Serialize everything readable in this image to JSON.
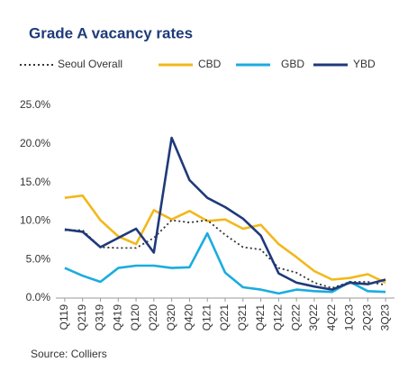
{
  "chart_data": {
    "type": "line",
    "title": "Grade A vacancy rates",
    "source": "Source: Colliers",
    "categories": [
      "Q119",
      "Q219",
      "Q319",
      "Q419",
      "Q120",
      "Q220",
      "Q320",
      "Q420",
      "Q121",
      "Q221",
      "Q321",
      "Q421",
      "Q122",
      "Q222",
      "3Q22",
      "4Q22",
      "1Q23",
      "2Q23",
      "3Q23"
    ],
    "series": [
      {
        "name": "Seoul Overall",
        "color": "#333333",
        "dash": "dotted",
        "values": [
          8.8,
          8.8,
          6.6,
          6.5,
          6.5,
          7.8,
          10.1,
          9.8,
          10.1,
          8.2,
          6.6,
          6.3,
          3.9,
          3.3,
          2.0,
          1.3,
          2.1,
          2.1,
          1.7
        ]
      },
      {
        "name": "CBD",
        "color": "#f2b81c",
        "values": [
          13.0,
          13.3,
          10.1,
          8.0,
          7.0,
          11.4,
          10.2,
          11.3,
          10.0,
          10.2,
          9.0,
          9.5,
          7.0,
          5.3,
          3.5,
          2.4,
          2.6,
          3.1,
          2.0
        ]
      },
      {
        "name": "GBD",
        "color": "#1aace0",
        "values": [
          3.9,
          2.9,
          2.1,
          3.9,
          4.2,
          4.2,
          3.9,
          4.0,
          8.4,
          3.3,
          1.4,
          1.1,
          0.6,
          1.1,
          0.9,
          0.8,
          2.1,
          0.9,
          0.8
        ]
      },
      {
        "name": "YBD",
        "color": "#1f3a7a",
        "values": [
          8.9,
          8.6,
          6.6,
          7.8,
          9.0,
          5.9,
          20.8,
          15.3,
          13.0,
          11.8,
          10.3,
          8.1,
          3.2,
          2.0,
          1.5,
          1.1,
          2.0,
          1.8,
          2.4
        ]
      }
    ],
    "ylim": [
      0,
      25
    ],
    "yticks": [
      {
        "value": 0,
        "label": "0.0%"
      },
      {
        "value": 5,
        "label": "5.0%"
      },
      {
        "value": 10,
        "label": "10.0%"
      },
      {
        "value": 15,
        "label": "15.0%"
      },
      {
        "value": 20,
        "label": "20.0%"
      },
      {
        "value": 25,
        "label": "25.0%"
      }
    ],
    "grid": false
  }
}
